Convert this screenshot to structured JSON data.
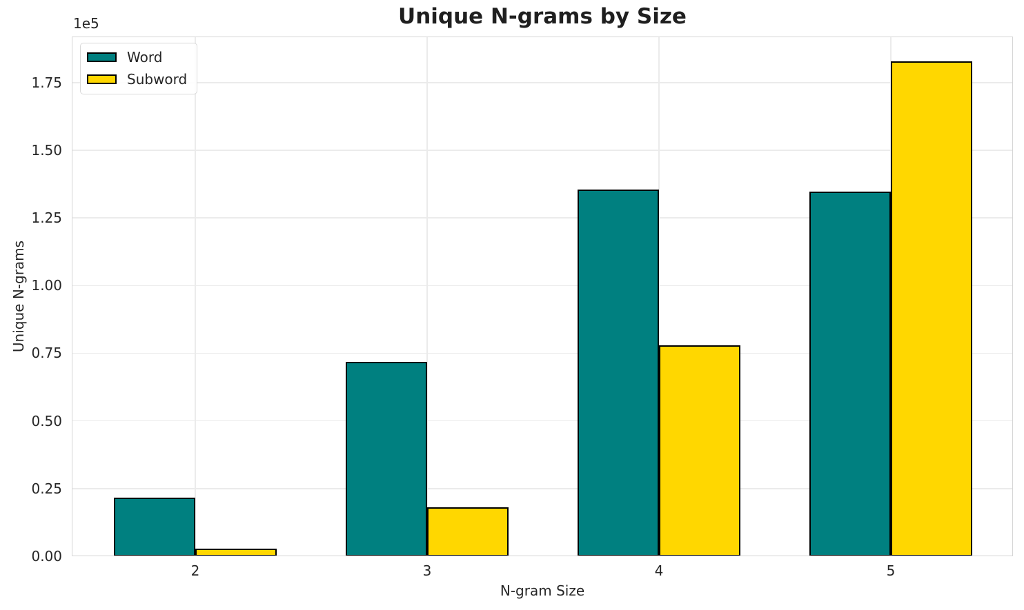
{
  "chart_data": {
    "type": "bar",
    "title": "Unique N-grams by Size",
    "xlabel": "N-gram Size",
    "ylabel": "Unique N-grams",
    "y_offset_text": "1e5",
    "categories": [
      "2",
      "3",
      "4",
      "5"
    ],
    "series": [
      {
        "name": "Word",
        "color": "#008080",
        "values": [
          21700,
          71900,
          135400,
          134700
        ]
      },
      {
        "name": "Subword",
        "color": "#ffd700",
        "values": [
          2700,
          18000,
          78000,
          182800
        ]
      }
    ],
    "bar_edge_color": "#000000",
    "yticks": [
      {
        "value": 0,
        "label": "0.00"
      },
      {
        "value": 25000,
        "label": "0.25"
      },
      {
        "value": 50000,
        "label": "0.50"
      },
      {
        "value": 75000,
        "label": "0.75"
      },
      {
        "value": 100000,
        "label": "1.00"
      },
      {
        "value": 125000,
        "label": "1.25"
      },
      {
        "value": 150000,
        "label": "1.50"
      },
      {
        "value": 175000,
        "label": "1.75"
      }
    ],
    "ylim": [
      0,
      192000
    ],
    "grid": true,
    "legend_position": "upper left",
    "grid_color": "#ebebeb",
    "spine_color": "#d5d5d5",
    "text_color": "#262626"
  }
}
